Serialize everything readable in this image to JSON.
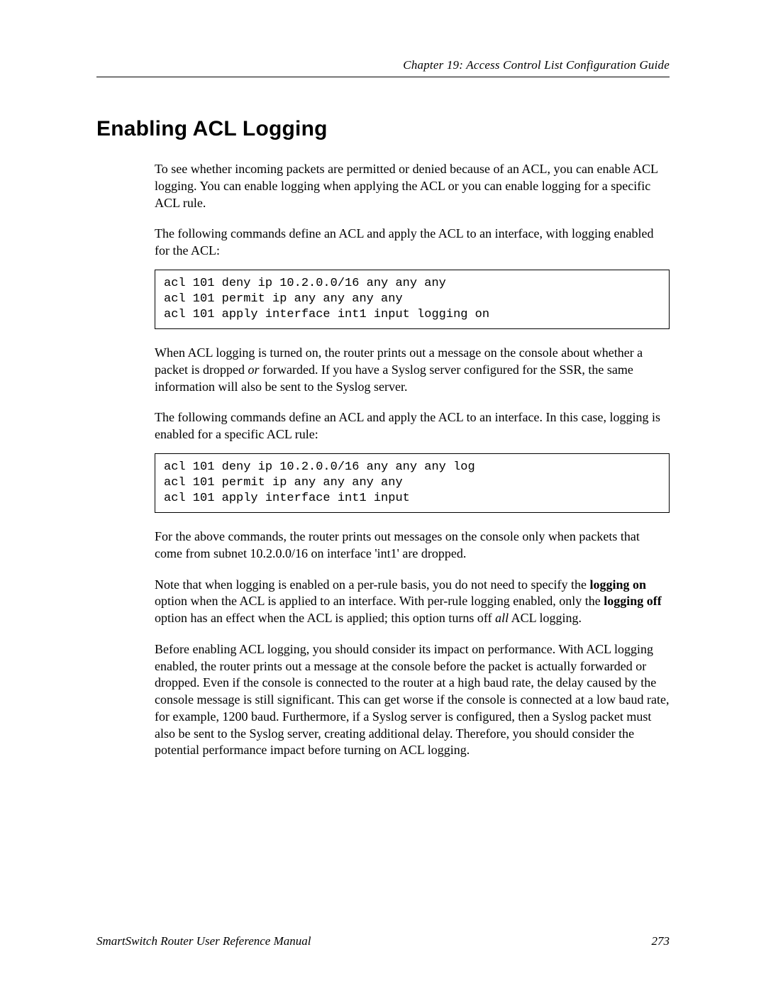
{
  "header": {
    "chapter": "Chapter 19: Access Control List Configuration Guide"
  },
  "title": "Enabling ACL Logging",
  "p1": "To see whether incoming packets are permitted or denied because of an ACL, you can enable ACL logging. You can enable logging when applying the ACL or you can enable logging for a specific ACL rule.",
  "p2": "The following commands define an ACL and apply the ACL to an interface, with logging enabled for the ACL:",
  "code1": "acl 101 deny ip 10.2.0.0/16 any any any\nacl 101 permit ip any any any any\nacl 101 apply interface int1 input logging on",
  "p3a": "When ACL logging is turned on, the router prints out a message on the console about whether a packet is dropped ",
  "p3_or": "or",
  "p3b": " forwarded. If you have a Syslog server configured for the SSR, the same information will also be sent to the Syslog server.",
  "p4": "The following commands define an ACL and apply the ACL to an interface. In this case, logging is enabled for a specific ACL rule:",
  "code2": "acl 101 deny ip 10.2.0.0/16 any any any log\nacl 101 permit ip any any any any\nacl 101 apply interface int1 input",
  "p5": "For the above commands, the router prints out messages on the console only when packets that come from subnet 10.2.0.0/16 on interface 'int1' are dropped.",
  "p6a": "Note that when logging is enabled on a per-rule basis, you do not need to specify the ",
  "p6_logging_on": "logging on",
  "p6b": " option when the ACL is applied to an interface. With per-rule logging enabled, only the ",
  "p6_logging_off": "logging off",
  "p6c": " option has an effect when the ACL is applied; this option turns off ",
  "p6_all": "all",
  "p6d": " ACL logging.",
  "p7": "Before enabling ACL logging, you should consider its impact on performance. With ACL logging enabled, the router prints out a message at the console before the packet is actually forwarded or dropped. Even if the console is connected to the router at a high baud rate, the delay caused by the console message is still significant. This can get worse if the console is connected at a low baud rate, for example, 1200 baud. Furthermore, if a Syslog server is configured, then a Syslog packet must also be sent to the Syslog server, creating additional delay. Therefore, you should consider the potential performance impact before turning on ACL logging.",
  "footer": {
    "manual": "SmartSwitch Router User Reference Manual",
    "page": "273"
  }
}
